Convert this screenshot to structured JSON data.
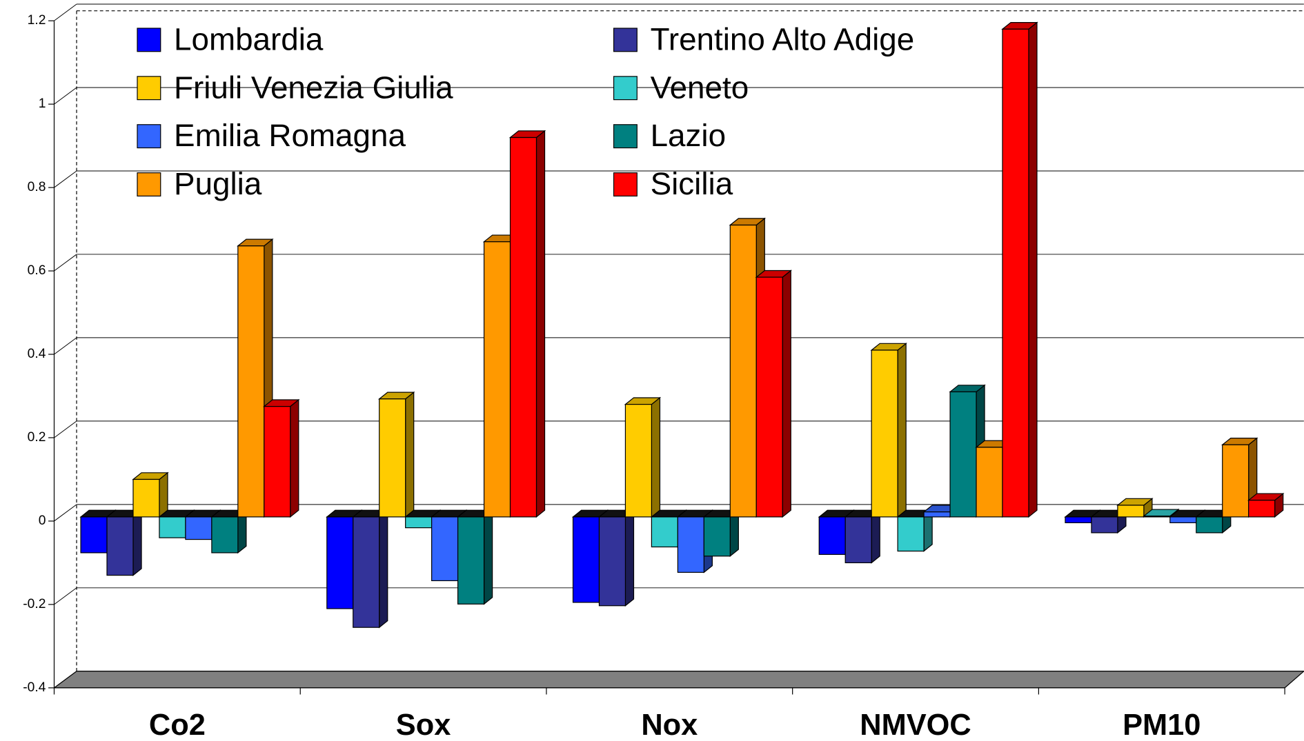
{
  "chart_data": {
    "type": "bar3d",
    "categories": [
      "Co2",
      "Sox",
      "Nox",
      "NMVOC",
      "PM10"
    ],
    "series": [
      {
        "name": "Lombardia",
        "color": "#0000ff",
        "values": [
          -0.086,
          -0.22,
          -0.205,
          -0.09,
          -0.014
        ]
      },
      {
        "name": "Trentino Alto Adige",
        "color": "#333399",
        "values": [
          -0.14,
          -0.265,
          -0.213,
          -0.11,
          -0.038
        ]
      },
      {
        "name": "Friuli Venezia Giulia",
        "color": "#ffcc00",
        "values": [
          0.09,
          0.283,
          0.27,
          0.4,
          0.028
        ]
      },
      {
        "name": "Veneto",
        "color": "#33cccc",
        "values": [
          -0.05,
          -0.026,
          -0.072,
          -0.082,
          0.002
        ]
      },
      {
        "name": "Emilia Romagna",
        "color": "#3366ff",
        "values": [
          -0.054,
          -0.153,
          -0.133,
          0.012,
          -0.014
        ]
      },
      {
        "name": "Lazio",
        "color": "#008080",
        "values": [
          -0.086,
          -0.209,
          -0.094,
          0.3,
          -0.038
        ]
      },
      {
        "name": "Puglia",
        "color": "#ff9900",
        "values": [
          0.65,
          0.66,
          0.7,
          0.167,
          0.173
        ]
      },
      {
        "name": "Sicilia",
        "color": "#ff0000",
        "values": [
          0.265,
          0.91,
          0.575,
          1.17,
          0.04
        ]
      }
    ],
    "ylim": [
      -0.4,
      1.2
    ],
    "yticks": [
      -0.4,
      -0.2,
      0,
      0.2,
      0.4,
      0.6,
      0.8,
      1,
      1.2
    ],
    "grid": true
  }
}
